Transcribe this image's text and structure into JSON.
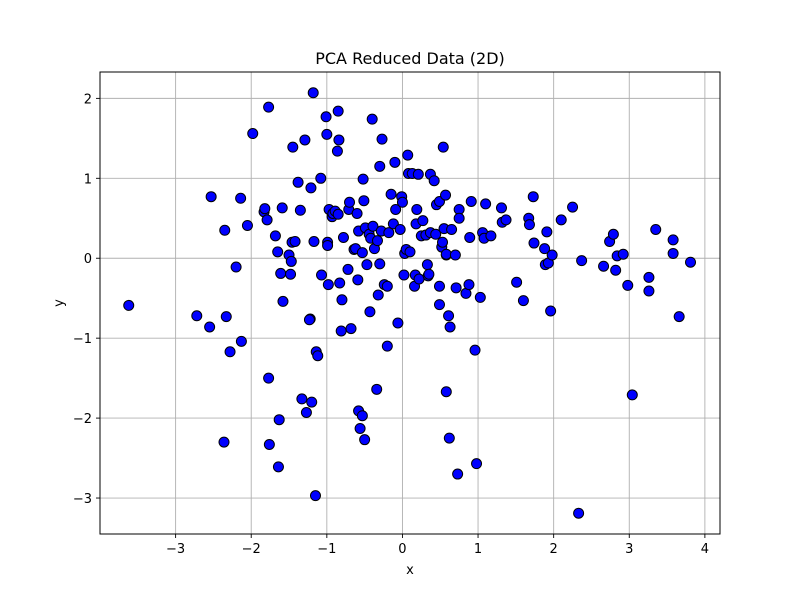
{
  "chart_data": {
    "type": "scatter",
    "title": "PCA Reduced Data (2D)",
    "xlabel": "x",
    "ylabel": "y",
    "xlim": [
      -4.0,
      4.2
    ],
    "ylim": [
      -3.45,
      2.33
    ],
    "xticks": [
      -3,
      -2,
      -1,
      0,
      1,
      2,
      3,
      4
    ],
    "yticks": [
      -3,
      -2,
      -1,
      0,
      1,
      2
    ],
    "xtick_labels": [
      "−3",
      "−2",
      "−1",
      "0",
      "1",
      "2",
      "3",
      "4"
    ],
    "ytick_labels": [
      "−3",
      "−2",
      "−1",
      "0",
      "1",
      "2"
    ],
    "grid": true,
    "marker_color": "#0000ff",
    "marker_edge_color": "#000000",
    "points": [
      [
        -3.62,
        -0.59
      ],
      [
        -2.72,
        -0.72
      ],
      [
        -2.55,
        -0.86
      ],
      [
        -2.53,
        0.77
      ],
      [
        -2.35,
        0.35
      ],
      [
        -2.33,
        -0.73
      ],
      [
        -2.28,
        -1.17
      ],
      [
        -2.36,
        -2.3
      ],
      [
        -2.2,
        -0.11
      ],
      [
        -2.14,
        0.75
      ],
      [
        -2.13,
        -1.04
      ],
      [
        -2.05,
        0.41
      ],
      [
        -1.98,
        1.56
      ],
      [
        -1.83,
        0.58
      ],
      [
        -1.82,
        0.62
      ],
      [
        -1.79,
        0.48
      ],
      [
        -1.77,
        1.89
      ],
      [
        -1.77,
        -1.5
      ],
      [
        -1.76,
        -2.33
      ],
      [
        -1.68,
        0.28
      ],
      [
        -1.65,
        0.08
      ],
      [
        -1.64,
        -2.61
      ],
      [
        -1.63,
        -2.02
      ],
      [
        -1.61,
        -0.19
      ],
      [
        -1.59,
        0.63
      ],
      [
        -1.58,
        -0.54
      ],
      [
        -1.5,
        0.04
      ],
      [
        -1.48,
        -0.2
      ],
      [
        -1.47,
        -0.04
      ],
      [
        -1.45,
        1.39
      ],
      [
        -1.46,
        0.2
      ],
      [
        -1.42,
        0.21
      ],
      [
        -1.38,
        0.95
      ],
      [
        -1.35,
        0.6
      ],
      [
        -1.33,
        -1.76
      ],
      [
        -1.29,
        1.48
      ],
      [
        -1.27,
        -1.93
      ],
      [
        -1.22,
        -0.76
      ],
      [
        -1.21,
        0.88
      ],
      [
        -1.2,
        -1.8
      ],
      [
        -1.18,
        2.07
      ],
      [
        -1.17,
        0.21
      ],
      [
        -1.15,
        -2.97
      ],
      [
        -1.14,
        -1.17
      ],
      [
        -1.12,
        -1.22
      ],
      [
        -1.08,
        1.0
      ],
      [
        -1.07,
        -0.21
      ],
      [
        -1.01,
        1.77
      ],
      [
        -1.0,
        1.55
      ],
      [
        -0.99,
        0.2
      ],
      [
        -0.99,
        0.16
      ],
      [
        -0.98,
        -0.33
      ],
      [
        -0.97,
        0.61
      ],
      [
        -0.93,
        0.52
      ],
      [
        -0.92,
        0.56
      ],
      [
        -0.89,
        0.59
      ],
      [
        -0.86,
        1.34
      ],
      [
        -0.85,
        0.55
      ],
      [
        -0.85,
        1.84
      ],
      [
        -0.84,
        1.48
      ],
      [
        -0.83,
        -0.31
      ],
      [
        -0.81,
        -0.91
      ],
      [
        -0.8,
        -0.52
      ],
      [
        -0.78,
        0.26
      ],
      [
        -0.72,
        -0.14
      ],
      [
        -0.71,
        0.61
      ],
      [
        -0.7,
        0.7
      ],
      [
        -0.68,
        -0.88
      ],
      [
        -0.64,
        0.11
      ],
      [
        -0.62,
        0.12
      ],
      [
        -0.6,
        0.56
      ],
      [
        -0.59,
        -0.27
      ],
      [
        -0.58,
        0.34
      ],
      [
        -0.58,
        -1.91
      ],
      [
        -0.56,
        -2.13
      ],
      [
        -0.53,
        -1.97
      ],
      [
        -0.53,
        0.07
      ],
      [
        -0.52,
        0.99
      ],
      [
        -0.51,
        0.72
      ],
      [
        -0.5,
        -2.27
      ],
      [
        -0.49,
        0.38
      ],
      [
        -0.47,
        -0.08
      ],
      [
        -0.44,
        0.3
      ],
      [
        -0.43,
        -0.67
      ],
      [
        -0.42,
        0.25
      ],
      [
        -0.4,
        1.74
      ],
      [
        -0.39,
        0.4
      ],
      [
        -0.37,
        0.12
      ],
      [
        -0.34,
        -1.64
      ],
      [
        -0.33,
        0.22
      ],
      [
        -0.32,
        -0.46
      ],
      [
        -0.3,
        1.15
      ],
      [
        -0.3,
        -0.07
      ],
      [
        -0.28,
        0.34
      ],
      [
        -0.27,
        1.49
      ],
      [
        -0.24,
        -0.33
      ],
      [
        -0.2,
        -1.1
      ],
      [
        -0.2,
        -0.35
      ],
      [
        -0.18,
        0.32
      ],
      [
        -0.15,
        0.8
      ],
      [
        -0.12,
        0.43
      ],
      [
        -0.1,
        1.2
      ],
      [
        -0.09,
        0.61
      ],
      [
        -0.06,
        -0.81
      ],
      [
        -0.03,
        0.36
      ],
      [
        -0.01,
        0.77
      ],
      [
        0.0,
        0.7
      ],
      [
        0.02,
        -0.21
      ],
      [
        0.03,
        0.06
      ],
      [
        0.05,
        0.11
      ],
      [
        0.07,
        1.29
      ],
      [
        0.08,
        1.06
      ],
      [
        0.1,
        0.08
      ],
      [
        0.13,
        1.06
      ],
      [
        0.16,
        -0.35
      ],
      [
        0.17,
        -0.21
      ],
      [
        0.18,
        0.43
      ],
      [
        0.19,
        0.61
      ],
      [
        0.21,
        1.05
      ],
      [
        0.22,
        -0.26
      ],
      [
        0.25,
        0.28
      ],
      [
        0.27,
        0.47
      ],
      [
        0.31,
        0.29
      ],
      [
        0.33,
        -0.08
      ],
      [
        0.34,
        -0.22
      ],
      [
        0.35,
        -0.2
      ],
      [
        0.37,
        1.05
      ],
      [
        0.37,
        0.32
      ],
      [
        0.42,
        0.97
      ],
      [
        0.44,
        0.3
      ],
      [
        0.45,
        0.67
      ],
      [
        0.49,
        -0.35
      ],
      [
        0.49,
        -0.58
      ],
      [
        0.49,
        0.71
      ],
      [
        0.52,
        0.14
      ],
      [
        0.53,
        0.2
      ],
      [
        0.54,
        1.39
      ],
      [
        0.55,
        0.37
      ],
      [
        0.57,
        0.79
      ],
      [
        0.58,
        0.04
      ],
      [
        0.58,
        0.05
      ],
      [
        0.58,
        -1.67
      ],
      [
        0.61,
        -0.72
      ],
      [
        0.62,
        -2.25
      ],
      [
        0.63,
        -0.86
      ],
      [
        0.65,
        0.36
      ],
      [
        0.7,
        0.04
      ],
      [
        0.71,
        -0.37
      ],
      [
        0.73,
        -2.7
      ],
      [
        0.75,
        0.61
      ],
      [
        0.75,
        0.5
      ],
      [
        0.84,
        -0.44
      ],
      [
        0.88,
        -0.33
      ],
      [
        0.89,
        0.26
      ],
      [
        0.91,
        0.71
      ],
      [
        0.96,
        -1.15
      ],
      [
        0.98,
        -2.57
      ],
      [
        1.03,
        -0.49
      ],
      [
        1.06,
        0.32
      ],
      [
        1.08,
        0.25
      ],
      [
        1.1,
        0.68
      ],
      [
        1.17,
        0.28
      ],
      [
        1.31,
        0.63
      ],
      [
        1.32,
        0.45
      ],
      [
        1.37,
        0.48
      ],
      [
        1.51,
        -0.3
      ],
      [
        1.6,
        -0.53
      ],
      [
        1.67,
        0.5
      ],
      [
        1.68,
        0.42
      ],
      [
        1.73,
        0.77
      ],
      [
        1.74,
        0.19
      ],
      [
        1.88,
        0.12
      ],
      [
        1.89,
        -0.08
      ],
      [
        1.91,
        0.33
      ],
      [
        1.93,
        -0.06
      ],
      [
        1.96,
        -0.66
      ],
      [
        1.98,
        0.04
      ],
      [
        2.1,
        0.48
      ],
      [
        2.25,
        0.64
      ],
      [
        2.33,
        -3.19
      ],
      [
        2.37,
        -0.03
      ],
      [
        2.66,
        -0.1
      ],
      [
        2.74,
        0.21
      ],
      [
        2.79,
        0.3
      ],
      [
        2.82,
        -0.15
      ],
      [
        2.84,
        0.03
      ],
      [
        2.92,
        0.05
      ],
      [
        2.98,
        -0.34
      ],
      [
        3.04,
        -1.71
      ],
      [
        3.26,
        -0.24
      ],
      [
        3.26,
        -0.41
      ],
      [
        3.35,
        0.36
      ],
      [
        3.58,
        0.23
      ],
      [
        3.58,
        0.06
      ],
      [
        3.66,
        -0.73
      ],
      [
        3.81,
        -0.05
      ],
      [
        -1.23,
        -0.77
      ]
    ]
  }
}
